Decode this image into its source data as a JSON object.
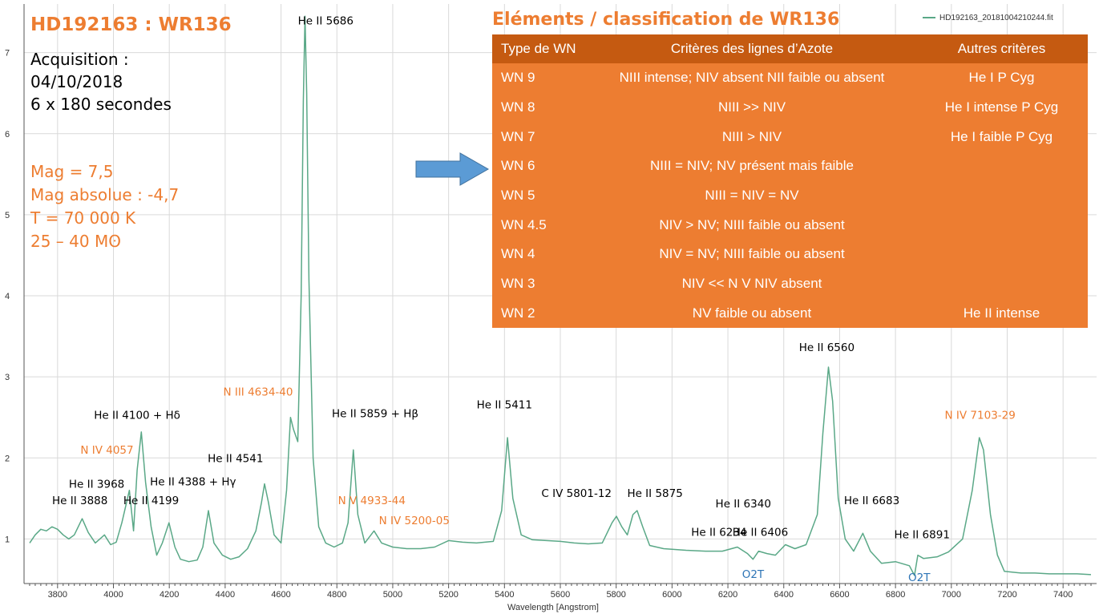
{
  "colors": {
    "spectrum": "#5aa887",
    "accent_orange": "#ed7d31",
    "table_header": "#c55a11",
    "table_body": "#ed7d31",
    "o2_label": "#2e75b6",
    "arrow_fill": "#5b9bd5",
    "grid": "#d9d9d9"
  },
  "info": {
    "star_title": "HD192163 : WR136",
    "acquisition": [
      "Acquisition :",
      "04/10/2018",
      "6 x 180 secondes"
    ],
    "properties": [
      "Mag = 7,5",
      "Mag absolue : -4,7",
      "T = 70 000 K",
      "25 – 40 Mʘ"
    ]
  },
  "legend": {
    "label": "HD192163_20181004210244.fit"
  },
  "table": {
    "title": "Eléments / classification de WR136",
    "headers": [
      "Type de WN",
      "Critères des lignes d’Azote",
      "Autres critères"
    ],
    "rows": [
      [
        "WN 9",
        "NIII intense; NIV absent NII faible ou absent",
        "He I P Cyg"
      ],
      [
        "WN 8",
        "NIII >> NIV",
        "He I intense P Cyg"
      ],
      [
        "WN 7",
        "NIII > NIV",
        "He I faible P Cyg"
      ],
      [
        "WN 6",
        "NIII = NIV; NV présent mais faible",
        ""
      ],
      [
        "WN 5",
        "NIII = NIV = NV",
        ""
      ],
      [
        "WN 4.5",
        "NIV > NV; NIII faible ou absent",
        ""
      ],
      [
        "WN 4",
        "NIV = NV; NIII faible ou absent",
        ""
      ],
      [
        "WN 3",
        "NIV << N V NIV absent",
        ""
      ],
      [
        "WN 2",
        "NV faible ou absent",
        "He II intense"
      ]
    ],
    "arrow_row": "WN 6"
  },
  "chart_data": {
    "type": "line",
    "xlabel": "Wavelength [Angstrom]",
    "ylabel": "",
    "xlim": [
      3680,
      7520
    ],
    "ylim": [
      0.45,
      7.6
    ],
    "xticks": [
      3800,
      4000,
      4200,
      4400,
      4600,
      4800,
      5000,
      5200,
      5400,
      5600,
      5800,
      6000,
      6200,
      6400,
      6600,
      6800,
      7000,
      7200,
      7400
    ],
    "yticks": [
      1,
      2,
      3,
      4,
      5,
      6,
      7
    ],
    "series": [
      {
        "name": "HD192163_20181004210244.fit",
        "points": [
          [
            3700,
            0.95
          ],
          [
            3720,
            1.05
          ],
          [
            3740,
            1.12
          ],
          [
            3760,
            1.1
          ],
          [
            3780,
            1.15
          ],
          [
            3800,
            1.12
          ],
          [
            3820,
            1.05
          ],
          [
            3840,
            1.0
          ],
          [
            3860,
            1.05
          ],
          [
            3888,
            1.25
          ],
          [
            3910,
            1.08
          ],
          [
            3935,
            0.95
          ],
          [
            3968,
            1.05
          ],
          [
            3990,
            0.93
          ],
          [
            4010,
            0.96
          ],
          [
            4030,
            1.2
          ],
          [
            4057,
            1.6
          ],
          [
            4072,
            1.1
          ],
          [
            4085,
            1.85
          ],
          [
            4100,
            2.32
          ],
          [
            4115,
            1.7
          ],
          [
            4135,
            1.15
          ],
          [
            4155,
            0.8
          ],
          [
            4175,
            0.95
          ],
          [
            4199,
            1.2
          ],
          [
            4220,
            0.9
          ],
          [
            4240,
            0.75
          ],
          [
            4270,
            0.72
          ],
          [
            4300,
            0.74
          ],
          [
            4320,
            0.9
          ],
          [
            4340,
            1.35
          ],
          [
            4360,
            0.95
          ],
          [
            4390,
            0.8
          ],
          [
            4420,
            0.75
          ],
          [
            4450,
            0.78
          ],
          [
            4480,
            0.88
          ],
          [
            4510,
            1.1
          ],
          [
            4530,
            1.45
          ],
          [
            4541,
            1.68
          ],
          [
            4555,
            1.45
          ],
          [
            4575,
            1.05
          ],
          [
            4600,
            0.95
          ],
          [
            4620,
            1.6
          ],
          [
            4634,
            2.5
          ],
          [
            4645,
            2.35
          ],
          [
            4660,
            2.2
          ],
          [
            4672,
            4.0
          ],
          [
            4680,
            6.4
          ],
          [
            4686,
            7.45
          ],
          [
            4692,
            6.5
          ],
          [
            4700,
            4.2
          ],
          [
            4715,
            2.0
          ],
          [
            4735,
            1.15
          ],
          [
            4760,
            0.95
          ],
          [
            4790,
            0.9
          ],
          [
            4820,
            0.95
          ],
          [
            4840,
            1.2
          ],
          [
            4859,
            2.1
          ],
          [
            4875,
            1.3
          ],
          [
            4900,
            0.95
          ],
          [
            4933,
            1.1
          ],
          [
            4960,
            0.95
          ],
          [
            5000,
            0.9
          ],
          [
            5050,
            0.88
          ],
          [
            5100,
            0.88
          ],
          [
            5150,
            0.9
          ],
          [
            5200,
            0.98
          ],
          [
            5250,
            0.96
          ],
          [
            5300,
            0.95
          ],
          [
            5360,
            0.97
          ],
          [
            5390,
            1.35
          ],
          [
            5411,
            2.25
          ],
          [
            5430,
            1.5
          ],
          [
            5460,
            1.05
          ],
          [
            5500,
            0.99
          ],
          [
            5550,
            0.98
          ],
          [
            5600,
            0.97
          ],
          [
            5650,
            0.95
          ],
          [
            5700,
            0.94
          ],
          [
            5750,
            0.95
          ],
          [
            5785,
            1.2
          ],
          [
            5801,
            1.28
          ],
          [
            5820,
            1.15
          ],
          [
            5840,
            1.05
          ],
          [
            5860,
            1.3
          ],
          [
            5875,
            1.35
          ],
          [
            5895,
            1.15
          ],
          [
            5920,
            0.92
          ],
          [
            5970,
            0.88
          ],
          [
            6050,
            0.86
          ],
          [
            6120,
            0.85
          ],
          [
            6180,
            0.85
          ],
          [
            6234,
            0.9
          ],
          [
            6270,
            0.82
          ],
          [
            6290,
            0.75
          ],
          [
            6310,
            0.85
          ],
          [
            6340,
            0.82
          ],
          [
            6370,
            0.8
          ],
          [
            6406,
            0.93
          ],
          [
            6440,
            0.88
          ],
          [
            6480,
            0.93
          ],
          [
            6520,
            1.3
          ],
          [
            6540,
            2.3
          ],
          [
            6560,
            3.12
          ],
          [
            6575,
            2.7
          ],
          [
            6595,
            1.5
          ],
          [
            6620,
            1.0
          ],
          [
            6650,
            0.85
          ],
          [
            6683,
            1.07
          ],
          [
            6710,
            0.85
          ],
          [
            6750,
            0.7
          ],
          [
            6800,
            0.72
          ],
          [
            6850,
            0.67
          ],
          [
            6868,
            0.55
          ],
          [
            6880,
            0.8
          ],
          [
            6900,
            0.76
          ],
          [
            6950,
            0.78
          ],
          [
            6990,
            0.84
          ],
          [
            7040,
            1.0
          ],
          [
            7075,
            1.6
          ],
          [
            7100,
            2.25
          ],
          [
            7115,
            2.1
          ],
          [
            7140,
            1.3
          ],
          [
            7165,
            0.8
          ],
          [
            7190,
            0.6
          ],
          [
            7250,
            0.58
          ],
          [
            7300,
            0.58
          ],
          [
            7350,
            0.57
          ],
          [
            7400,
            0.57
          ],
          [
            7450,
            0.57
          ],
          [
            7500,
            0.56
          ]
        ]
      }
    ],
    "annotations": [
      {
        "text": "He II 5686",
        "x": 4760,
        "y": 7.35,
        "color": "black"
      },
      {
        "text": "He II 3888",
        "x": 3880,
        "y": 1.43,
        "color": "black"
      },
      {
        "text": "He II 3968",
        "x": 3940,
        "y": 1.63,
        "color": "black"
      },
      {
        "text": "N IV 4057",
        "x": 3977,
        "y": 2.05,
        "color": "orange"
      },
      {
        "text": "He II 4100 + Hδ",
        "x": 4085,
        "y": 2.48,
        "color": "black"
      },
      {
        "text": "He II 4199",
        "x": 4135,
        "y": 1.43,
        "color": "black"
      },
      {
        "text": "He II 4388 + Hγ",
        "x": 4285,
        "y": 1.66,
        "color": "black"
      },
      {
        "text": "He II 4541",
        "x": 4437,
        "y": 1.95,
        "color": "black"
      },
      {
        "text": "N III 4634-40",
        "x": 4518,
        "y": 2.77,
        "color": "orange"
      },
      {
        "text": "He II 5859 + Hβ",
        "x": 4937,
        "y": 2.5,
        "color": "black"
      },
      {
        "text": "N V 4933-44",
        "x": 4925,
        "y": 1.43,
        "color": "orange"
      },
      {
        "text": "N IV 5200-05",
        "x": 5077,
        "y": 1.18,
        "color": "orange"
      },
      {
        "text": "He II 5411",
        "x": 5400,
        "y": 2.61,
        "color": "black"
      },
      {
        "text": "C IV 5801-12",
        "x": 5658,
        "y": 1.52,
        "color": "black"
      },
      {
        "text": "He II 5875",
        "x": 5939,
        "y": 1.52,
        "color": "black"
      },
      {
        "text": "He II 6340",
        "x": 6255,
        "y": 1.39,
        "color": "black"
      },
      {
        "text": "He II 6234",
        "x": 6168,
        "y": 1.04,
        "color": "black"
      },
      {
        "text": "He II 6406",
        "x": 6316,
        "y": 1.04,
        "color": "black"
      },
      {
        "text": "O2T",
        "x": 6290,
        "y": 0.52,
        "color": "blue"
      },
      {
        "text": "He II 6560",
        "x": 6554,
        "y": 3.32,
        "color": "black"
      },
      {
        "text": "He II 6683",
        "x": 6715,
        "y": 1.43,
        "color": "black"
      },
      {
        "text": "He II 6891",
        "x": 6895,
        "y": 1.01,
        "color": "black"
      },
      {
        "text": "O2T",
        "x": 6885,
        "y": 0.48,
        "color": "blue"
      },
      {
        "text": "N IV 7103-29",
        "x": 7103,
        "y": 2.48,
        "color": "orange"
      }
    ]
  }
}
